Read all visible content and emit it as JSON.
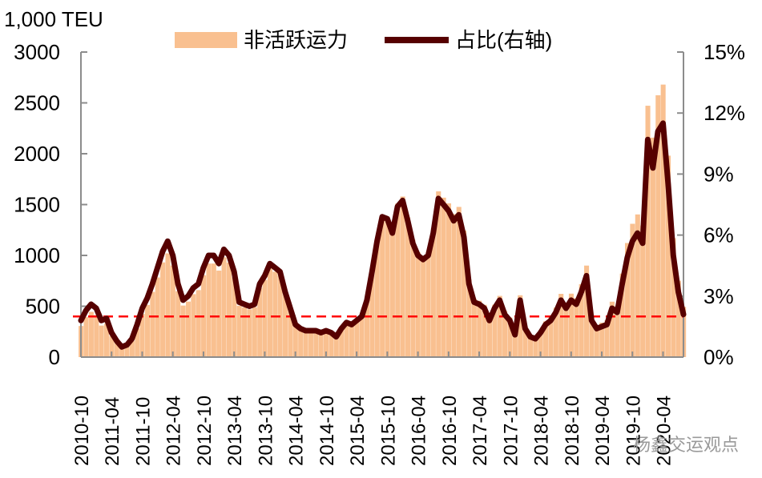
{
  "chart_data": {
    "type": "bar+line",
    "ylabel_left": "1,000 TEU",
    "ylim_left": [
      0,
      3000
    ],
    "yticks_left": [
      "0",
      "500",
      "1000",
      "1500",
      "2000",
      "2500",
      "3000"
    ],
    "ylim_right": [
      0,
      15
    ],
    "yticks_right": [
      "0%",
      "3%",
      "6%",
      "9%",
      "12%",
      "15%"
    ],
    "xtick_labels": [
      "2010-10",
      "2011-04",
      "2011-10",
      "2012-04",
      "2012-10",
      "2013-04",
      "2013-10",
      "2014-04",
      "2014-10",
      "2015-04",
      "2015-10",
      "2016-04",
      "2016-10",
      "2017-04",
      "2017-10",
      "2018-04",
      "2018-10",
      "2019-04",
      "2019-10",
      "2020-04"
    ],
    "grid": false,
    "legend_position": "top",
    "reference_line": {
      "axis": "right",
      "value": 2,
      "style": "dashed",
      "color": "#ff0000"
    },
    "x": [
      "2010-10",
      "2010-11",
      "2010-12",
      "2011-01",
      "2011-02",
      "2011-03",
      "2011-04",
      "2011-05",
      "2011-06",
      "2011-07",
      "2011-08",
      "2011-09",
      "2011-10",
      "2011-11",
      "2011-12",
      "2012-01",
      "2012-02",
      "2012-03",
      "2012-04",
      "2012-05",
      "2012-06",
      "2012-07",
      "2012-08",
      "2012-09",
      "2012-10",
      "2012-11",
      "2012-12",
      "2013-01",
      "2013-02",
      "2013-03",
      "2013-04",
      "2013-05",
      "2013-06",
      "2013-07",
      "2013-08",
      "2013-09",
      "2013-10",
      "2013-11",
      "2013-12",
      "2014-01",
      "2014-02",
      "2014-03",
      "2014-04",
      "2014-05",
      "2014-06",
      "2014-07",
      "2014-08",
      "2014-09",
      "2014-10",
      "2014-11",
      "2014-12",
      "2015-01",
      "2015-02",
      "2015-03",
      "2015-04",
      "2015-05",
      "2015-06",
      "2015-07",
      "2015-08",
      "2015-09",
      "2015-10",
      "2015-11",
      "2015-12",
      "2016-01",
      "2016-02",
      "2016-03",
      "2016-04",
      "2016-05",
      "2016-06",
      "2016-07",
      "2016-08",
      "2016-09",
      "2016-10",
      "2016-11",
      "2016-12",
      "2017-01",
      "2017-02",
      "2017-03",
      "2017-04",
      "2017-05",
      "2017-06",
      "2017-07",
      "2017-08",
      "2017-09",
      "2017-10",
      "2017-11",
      "2017-12",
      "2018-01",
      "2018-02",
      "2018-03",
      "2018-04",
      "2018-05",
      "2018-06",
      "2018-07",
      "2018-08",
      "2018-09",
      "2018-10",
      "2018-11",
      "2018-12",
      "2019-01",
      "2019-02",
      "2019-03",
      "2019-04",
      "2019-05",
      "2019-06",
      "2019-07",
      "2019-08",
      "2019-09",
      "2019-10",
      "2019-11",
      "2019-12",
      "2020-01",
      "2020-02",
      "2020-03",
      "2020-04",
      "2020-05",
      "2020-06",
      "2020-07",
      "2020-08"
    ],
    "series": [
      {
        "name": "非活跃运力",
        "kind": "bar",
        "axis": "left",
        "color": "#f9c090",
        "values": [
          306,
          393,
          445,
          413,
          310,
          329,
          208,
          139,
          87,
          105,
          158,
          282,
          425,
          513,
          641,
          783,
          931,
          1020,
          900,
          648,
          507,
          546,
          619,
          659,
          805,
          920,
          920,
          851,
          981,
          930,
          785,
          505,
          489,
          470,
          491,
          680,
          760,
          874,
          840,
          802,
          614,
          463,
          309,
          272,
          252,
          254,
          254,
          235,
          255,
          236,
          198,
          277,
          338,
          318,
          360,
          400,
          563,
          844,
          1151,
          1394,
          1380,
          1244,
          1510,
          1579,
          1374,
          1154,
          1030,
          994,
          1035,
          1269,
          1630,
          1568,
          1512,
          1407,
          1477,
          1245,
          763,
          572,
          554,
          514,
          385,
          516,
          602,
          454,
          389,
          239,
          608,
          305,
          219,
          197,
          264,
          352,
          398,
          486,
          622,
          533,
          624,
          580,
          717,
          900,
          405,
          316,
          339,
          363,
          545,
          502,
          821,
          1122,
          1311,
          1403,
          1294,
          2472,
          2158,
          2575,
          2680,
          1981,
          1170,
          752,
          494
        ]
      },
      {
        "name": "占比(右轴)",
        "kind": "line",
        "axis": "right",
        "color": "#560000",
        "values": [
          1.8,
          2.3,
          2.6,
          2.4,
          1.8,
          1.9,
          1.2,
          0.8,
          0.5,
          0.6,
          0.9,
          1.6,
          2.4,
          2.9,
          3.6,
          4.4,
          5.2,
          5.7,
          5.0,
          3.6,
          2.8,
          3.0,
          3.4,
          3.6,
          4.4,
          5.0,
          5.0,
          4.6,
          5.3,
          5.0,
          4.2,
          2.7,
          2.6,
          2.5,
          2.6,
          3.6,
          4.0,
          4.6,
          4.4,
          4.2,
          3.2,
          2.4,
          1.6,
          1.4,
          1.3,
          1.3,
          1.3,
          1.2,
          1.3,
          1.2,
          1.0,
          1.4,
          1.7,
          1.6,
          1.8,
          2.0,
          2.8,
          4.2,
          5.7,
          6.9,
          6.8,
          6.1,
          7.4,
          7.7,
          6.7,
          5.6,
          5.0,
          4.8,
          5.0,
          6.1,
          7.8,
          7.5,
          7.2,
          6.7,
          7.0,
          5.9,
          3.6,
          2.7,
          2.6,
          2.4,
          1.8,
          2.4,
          2.8,
          2.1,
          1.8,
          1.1,
          2.8,
          1.4,
          1.0,
          0.9,
          1.2,
          1.6,
          1.8,
          2.2,
          2.8,
          2.4,
          2.8,
          2.6,
          3.2,
          4.0,
          1.8,
          1.4,
          1.5,
          1.6,
          2.4,
          2.2,
          3.6,
          4.9,
          5.7,
          6.1,
          5.6,
          10.7,
          9.3,
          11.1,
          11.5,
          8.5,
          5.0,
          3.2,
          2.1
        ]
      }
    ]
  },
  "watermark": "杨鑫交运观点"
}
